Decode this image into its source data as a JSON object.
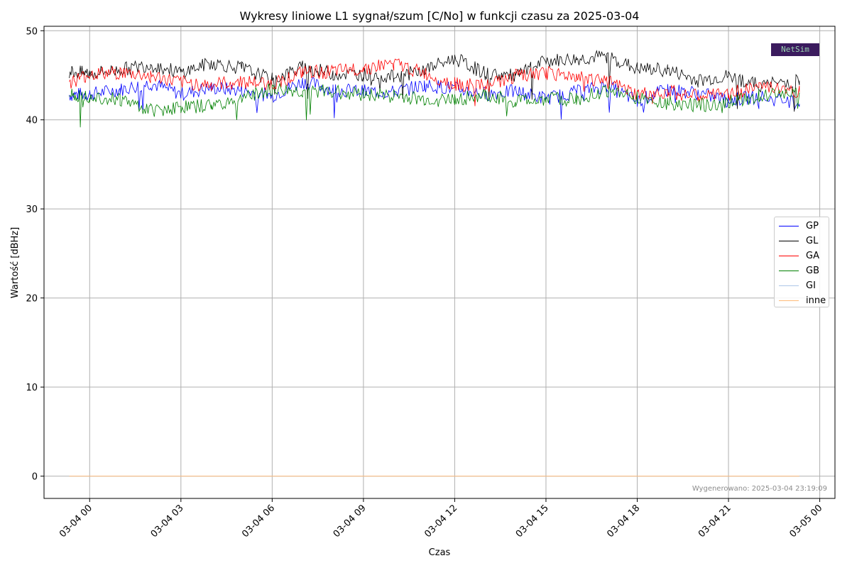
{
  "chart_data": {
    "type": "line",
    "title": "Wykresy liniowe L1 sygnał/szum [C/No] w funkcji czasu za 2025-03-04",
    "xlabel": "Czas",
    "ylabel": "Wartość [dBHz]",
    "x_ticks": [
      "03-04 00",
      "03-04 03",
      "03-04 06",
      "03-04 09",
      "03-04 12",
      "03-04 15",
      "03-04 18",
      "03-04 21",
      "03-05 00"
    ],
    "y_ticks": [
      "0",
      "10",
      "20",
      "30",
      "40",
      "50"
    ],
    "x_range_hours": [
      -1.5,
      24.5
    ],
    "ylim": [
      -2.5,
      50.5
    ],
    "grid": true,
    "legend_position": "right",
    "x": [
      -0.67,
      0.0,
      1.0,
      2.0,
      3.0,
      4.0,
      5.0,
      6.0,
      7.0,
      8.0,
      9.0,
      10.0,
      11.0,
      12.0,
      13.0,
      14.0,
      15.0,
      16.0,
      17.0,
      18.0,
      19.0,
      20.0,
      21.0,
      22.0,
      23.33
    ],
    "series": [
      {
        "name": "GP",
        "color": "#0000ff",
        "values": [
          42.8,
          42.9,
          43.4,
          44.1,
          42.9,
          43.6,
          43.3,
          42.7,
          44.3,
          43.4,
          43.2,
          43.1,
          43.9,
          43.5,
          42.9,
          43.2,
          42.4,
          43.1,
          43.8,
          42.1,
          43.4,
          43.0,
          42.2,
          42.6,
          41.8
        ]
      },
      {
        "name": "GL",
        "color": "#000000",
        "values": [
          45.4,
          45.2,
          45.6,
          46.2,
          45.3,
          46.4,
          45.8,
          44.5,
          45.9,
          45.2,
          45.1,
          44.8,
          45.6,
          46.9,
          45.2,
          44.9,
          46.6,
          46.8,
          47.1,
          45.7,
          45.6,
          44.4,
          44.9,
          43.9,
          44.4
        ]
      },
      {
        "name": "GA",
        "color": "#ff0000",
        "values": [
          44.2,
          45.1,
          45.3,
          44.9,
          44.2,
          43.9,
          44.3,
          44.0,
          45.3,
          45.4,
          45.8,
          46.3,
          45.2,
          44.0,
          43.8,
          44.9,
          45.2,
          44.9,
          44.3,
          42.8,
          43.2,
          42.6,
          42.9,
          43.8,
          43.1
        ]
      },
      {
        "name": "GB",
        "color": "#008000",
        "values": [
          42.9,
          42.7,
          42.3,
          41.1,
          41.4,
          41.6,
          42.4,
          43.4,
          43.1,
          43.2,
          42.9,
          42.7,
          42.2,
          42.3,
          42.7,
          42.1,
          42.3,
          42.3,
          43.3,
          42.5,
          41.9,
          41.6,
          42.0,
          42.7,
          42.9
        ]
      },
      {
        "name": "GI",
        "color": "#aec7e8",
        "values": [
          0,
          0,
          0,
          0,
          0,
          0,
          0,
          0,
          0,
          0,
          0,
          0,
          0,
          0,
          0,
          0,
          0,
          0,
          0,
          0,
          0,
          0,
          0,
          0,
          0
        ]
      },
      {
        "name": "inne",
        "color": "#ffbb78",
        "values": [
          0,
          0,
          0,
          0,
          0,
          0,
          0,
          0,
          0,
          0,
          0,
          0,
          0,
          0,
          0,
          0,
          0,
          0,
          0,
          0,
          0,
          0,
          0,
          0,
          0
        ]
      }
    ],
    "generated_note": "Wygenerowano: 2025-03-04 23:19:09",
    "logo_text": "NetSim"
  }
}
